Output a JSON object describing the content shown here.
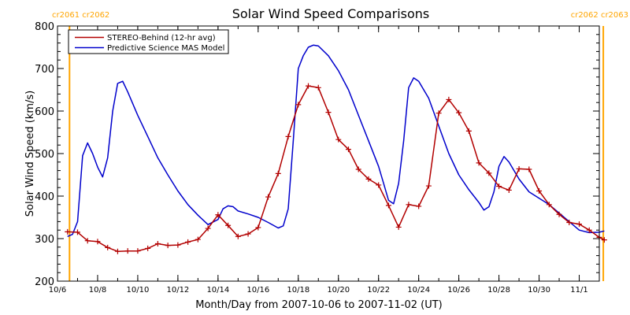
{
  "chart_data": {
    "type": "line",
    "title": "Solar Wind Speed Comparisons",
    "xlabel": "Month/Day from 2007-10-06 to 2007-11-02 (UT)",
    "ylabel": "Solar Wind Speed (km/s)",
    "xlim": [
      "2007-10-06",
      "2007-11-02"
    ],
    "ylim": [
      200,
      800
    ],
    "y_ticks": [
      200,
      300,
      400,
      500,
      600,
      700,
      800
    ],
    "x_ticks": [
      {
        "label": "10/6",
        "date": "2007-10-06"
      },
      {
        "label": "10/8",
        "date": "2007-10-08"
      },
      {
        "label": "10/10",
        "date": "2007-10-10"
      },
      {
        "label": "10/12",
        "date": "2007-10-12"
      },
      {
        "label": "10/14",
        "date": "2007-10-14"
      },
      {
        "label": "10/16",
        "date": "2007-10-16"
      },
      {
        "label": "10/18",
        "date": "2007-10-18"
      },
      {
        "label": "10/20",
        "date": "2007-10-20"
      },
      {
        "label": "10/22",
        "date": "2007-10-22"
      },
      {
        "label": "10/24",
        "date": "2007-10-24"
      },
      {
        "label": "10/26",
        "date": "2007-10-26"
      },
      {
        "label": "10/28",
        "date": "2007-10-28"
      },
      {
        "label": "10/30",
        "date": "2007-10-30"
      },
      {
        "label": "11/1",
        "date": "2007-11-01"
      }
    ],
    "grid": false,
    "legend_position": "top-left",
    "series": [
      {
        "name": "STEREO-Behind (12-hr avg)",
        "color": "#b20000",
        "marker": "plus",
        "points": [
          [
            "2007-10-06 12:00",
            316
          ],
          [
            "2007-10-07 00:00",
            315
          ],
          [
            "2007-10-07 12:00",
            295
          ],
          [
            "2007-10-08 00:00",
            293
          ],
          [
            "2007-10-08 12:00",
            279
          ],
          [
            "2007-10-09 00:00",
            270
          ],
          [
            "2007-10-09 12:00",
            271
          ],
          [
            "2007-10-10 00:00",
            271
          ],
          [
            "2007-10-10 12:00",
            277
          ],
          [
            "2007-10-11 00:00",
            288
          ],
          [
            "2007-10-11 12:00",
            284
          ],
          [
            "2007-10-12 00:00",
            285
          ],
          [
            "2007-10-12 12:00",
            292
          ],
          [
            "2007-10-13 00:00",
            298
          ],
          [
            "2007-10-13 12:00",
            324
          ],
          [
            "2007-10-14 00:00",
            356
          ],
          [
            "2007-10-14 12:00",
            331
          ],
          [
            "2007-10-15 00:00",
            305
          ],
          [
            "2007-10-15 12:00",
            311
          ],
          [
            "2007-10-16 00:00",
            326
          ],
          [
            "2007-10-16 12:00",
            398
          ],
          [
            "2007-10-17 00:00",
            453
          ],
          [
            "2007-10-17 12:00",
            540
          ],
          [
            "2007-10-18 00:00",
            615
          ],
          [
            "2007-10-18 12:00",
            659
          ],
          [
            "2007-10-19 00:00",
            655
          ],
          [
            "2007-10-19 12:00",
            597
          ],
          [
            "2007-10-20 00:00",
            533
          ],
          [
            "2007-10-20 12:00",
            510
          ],
          [
            "2007-10-21 00:00",
            463
          ],
          [
            "2007-10-21 12:00",
            440
          ],
          [
            "2007-10-22 00:00",
            426
          ],
          [
            "2007-10-22 12:00",
            378
          ],
          [
            "2007-10-23 00:00",
            327
          ],
          [
            "2007-10-23 12:00",
            380
          ],
          [
            "2007-10-24 00:00",
            376
          ],
          [
            "2007-10-24 12:00",
            424
          ],
          [
            "2007-10-25 00:00",
            595
          ],
          [
            "2007-10-25 12:00",
            627
          ],
          [
            "2007-10-26 00:00",
            596
          ],
          [
            "2007-10-26 12:00",
            553
          ],
          [
            "2007-10-27 00:00",
            478
          ],
          [
            "2007-10-27 12:00",
            454
          ],
          [
            "2007-10-28 00:00",
            423
          ],
          [
            "2007-10-28 12:00",
            414
          ],
          [
            "2007-10-29 00:00",
            464
          ],
          [
            "2007-10-29 12:00",
            463
          ],
          [
            "2007-10-30 00:00",
            412
          ],
          [
            "2007-10-30 12:00",
            380
          ],
          [
            "2007-10-31 00:00",
            357
          ],
          [
            "2007-10-31 12:00",
            338
          ],
          [
            "2007-11-01 00:00",
            334
          ],
          [
            "2007-11-01 12:00",
            320
          ],
          [
            "2007-11-02 00:00",
            303
          ],
          [
            "2007-11-02 06:00",
            297
          ]
        ]
      },
      {
        "name": "Predictive Science MAS Model",
        "color": "#0000cc",
        "marker": "none",
        "points": [
          [
            "2007-10-06 12:00",
            305
          ],
          [
            "2007-10-06 18:00",
            310
          ],
          [
            "2007-10-07 00:00",
            340
          ],
          [
            "2007-10-07 06:00",
            495
          ],
          [
            "2007-10-07 12:00",
            525
          ],
          [
            "2007-10-07 18:00",
            500
          ],
          [
            "2007-10-08 00:00",
            468
          ],
          [
            "2007-10-08 06:00",
            445
          ],
          [
            "2007-10-08 12:00",
            490
          ],
          [
            "2007-10-08 18:00",
            600
          ],
          [
            "2007-10-09 00:00",
            665
          ],
          [
            "2007-10-09 06:00",
            670
          ],
          [
            "2007-10-09 12:00",
            645
          ],
          [
            "2007-10-10 00:00",
            590
          ],
          [
            "2007-10-10 12:00",
            540
          ],
          [
            "2007-10-11 00:00",
            490
          ],
          [
            "2007-10-11 12:00",
            450
          ],
          [
            "2007-10-12 00:00",
            412
          ],
          [
            "2007-10-12 12:00",
            380
          ],
          [
            "2007-10-13 00:00",
            355
          ],
          [
            "2007-10-13 12:00",
            333
          ],
          [
            "2007-10-14 00:00",
            345
          ],
          [
            "2007-10-14 06:00",
            370
          ],
          [
            "2007-10-14 12:00",
            377
          ],
          [
            "2007-10-14 18:00",
            375
          ],
          [
            "2007-10-15 00:00",
            365
          ],
          [
            "2007-10-15 12:00",
            358
          ],
          [
            "2007-10-16 00:00",
            350
          ],
          [
            "2007-10-16 12:00",
            338
          ],
          [
            "2007-10-17 00:00",
            325
          ],
          [
            "2007-10-17 06:00",
            330
          ],
          [
            "2007-10-17 12:00",
            370
          ],
          [
            "2007-10-17 18:00",
            530
          ],
          [
            "2007-10-18 00:00",
            700
          ],
          [
            "2007-10-18 06:00",
            730
          ],
          [
            "2007-10-18 12:00",
            750
          ],
          [
            "2007-10-18 18:00",
            755
          ],
          [
            "2007-10-19 00:00",
            753
          ],
          [
            "2007-10-19 12:00",
            730
          ],
          [
            "2007-10-20 00:00",
            695
          ],
          [
            "2007-10-20 12:00",
            650
          ],
          [
            "2007-10-21 00:00",
            590
          ],
          [
            "2007-10-21 12:00",
            530
          ],
          [
            "2007-10-22 00:00",
            470
          ],
          [
            "2007-10-22 06:00",
            430
          ],
          [
            "2007-10-22 12:00",
            390
          ],
          [
            "2007-10-22 18:00",
            382
          ],
          [
            "2007-10-23 00:00",
            430
          ],
          [
            "2007-10-23 06:00",
            530
          ],
          [
            "2007-10-23 12:00",
            655
          ],
          [
            "2007-10-23 18:00",
            678
          ],
          [
            "2007-10-24 00:00",
            670
          ],
          [
            "2007-10-24 12:00",
            630
          ],
          [
            "2007-10-25 00:00",
            565
          ],
          [
            "2007-10-25 12:00",
            500
          ],
          [
            "2007-10-26 00:00",
            450
          ],
          [
            "2007-10-26 12:00",
            415
          ],
          [
            "2007-10-27 00:00",
            385
          ],
          [
            "2007-10-27 06:00",
            367
          ],
          [
            "2007-10-27 12:00",
            375
          ],
          [
            "2007-10-27 18:00",
            410
          ],
          [
            "2007-10-28 00:00",
            470
          ],
          [
            "2007-10-28 06:00",
            493
          ],
          [
            "2007-10-28 12:00",
            480
          ],
          [
            "2007-10-29 00:00",
            440
          ],
          [
            "2007-10-29 12:00",
            410
          ],
          [
            "2007-10-30 00:00",
            395
          ],
          [
            "2007-10-30 12:00",
            380
          ],
          [
            "2007-10-31 00:00",
            360
          ],
          [
            "2007-10-31 12:00",
            340
          ],
          [
            "2007-11-01 00:00",
            320
          ],
          [
            "2007-11-01 12:00",
            314
          ],
          [
            "2007-11-02 00:00",
            315
          ],
          [
            "2007-11-02 06:00",
            318
          ]
        ]
      }
    ],
    "carrington_markers": [
      {
        "labels": [
          "cr2061",
          "cr2062"
        ],
        "date": "2007-10-06 14:24",
        "color": "#ffa500",
        "label_side": "left"
      },
      {
        "labels": [
          "cr2062",
          "cr2063"
        ],
        "date": "2007-11-02 04:48",
        "color": "#ffa500",
        "label_side": "right"
      }
    ]
  }
}
